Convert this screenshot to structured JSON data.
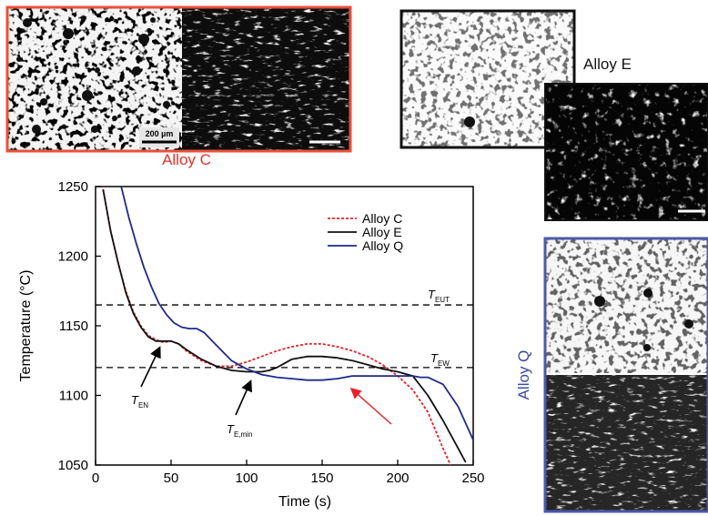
{
  "panels": {
    "alloy_c": {
      "label": "Alloy C",
      "scale_bar": "200 µm",
      "frame_color": "#e8503a",
      "label_color": "#e8322a"
    },
    "alloy_e": {
      "label": "Alloy E",
      "frame_color": "#111111",
      "label_color": "#111111"
    },
    "alloy_q": {
      "label": "Alloy Q",
      "frame_color": "#4a5aa8",
      "label_color": "#3a4aa0"
    }
  },
  "chart_data": {
    "type": "line",
    "xlabel": "Time (s)",
    "ylabel": "Temperature (°C)",
    "xlim": [
      0,
      250
    ],
    "ylim": [
      1050,
      1250
    ],
    "xticks": [
      0,
      50,
      100,
      150,
      200,
      250
    ],
    "yticks": [
      1050,
      1100,
      1150,
      1200,
      1250
    ],
    "grid": false,
    "legend": "top-right",
    "series": [
      {
        "name": "Alloy C",
        "color": "#e8202a",
        "dash": "dashed",
        "x": [
          5,
          10,
          15,
          20,
          25,
          30,
          35,
          40,
          45,
          50,
          55,
          60,
          70,
          80,
          90,
          100,
          110,
          120,
          130,
          140,
          150,
          160,
          170,
          180,
          190,
          200,
          210,
          220,
          225,
          230,
          235
        ],
        "y": [
          1248,
          1218,
          1195,
          1175,
          1160,
          1150,
          1143,
          1140,
          1138,
          1139,
          1137,
          1132,
          1125,
          1121,
          1121,
          1124,
          1128,
          1132,
          1135,
          1137,
          1137,
          1135,
          1132,
          1128,
          1122,
          1114,
          1104,
          1088,
          1075,
          1062,
          1050
        ]
      },
      {
        "name": "Alloy E",
        "color": "#111111",
        "dash": "solid",
        "x": [
          5,
          10,
          15,
          20,
          25,
          30,
          35,
          40,
          45,
          50,
          55,
          60,
          70,
          80,
          90,
          100,
          110,
          115,
          120,
          125,
          130,
          140,
          150,
          160,
          170,
          180,
          190,
          200,
          210,
          220,
          230,
          240,
          245
        ],
        "y": [
          1248,
          1218,
          1195,
          1174,
          1159,
          1149,
          1142,
          1139,
          1139,
          1139,
          1137,
          1133,
          1126,
          1121,
          1118,
          1117,
          1117,
          1118,
          1120,
          1123,
          1126,
          1128,
          1128,
          1127,
          1125,
          1122,
          1119,
          1117,
          1114,
          1100,
          1082,
          1062,
          1052
        ]
      },
      {
        "name": "Alloy Q",
        "color": "#1f2a8a",
        "dash": "solid",
        "x": [
          17,
          22,
          27,
          32,
          37,
          42,
          47,
          52,
          57,
          62,
          67,
          72,
          80,
          90,
          100,
          110,
          120,
          130,
          140,
          150,
          160,
          165,
          170,
          180,
          190,
          200,
          210,
          215,
          220,
          230,
          240,
          250
        ],
        "y": [
          1250,
          1228,
          1209,
          1192,
          1178,
          1166,
          1158,
          1152,
          1149,
          1148,
          1148,
          1145,
          1136,
          1125,
          1119,
          1115,
          1113,
          1112,
          1111,
          1111,
          1112,
          1113,
          1114,
          1114,
          1114,
          1114,
          1114,
          1113,
          1113,
          1108,
          1092,
          1068
        ]
      }
    ],
    "annotations": {
      "t_eut": {
        "base": "T",
        "sub": "EUT",
        "y": 1165
      },
      "t_ew": {
        "base": "T",
        "sub": "EW",
        "y": 1120
      },
      "t_en": {
        "base": "T",
        "sub": "EN",
        "arrow_to": [
          42,
          1139
        ]
      },
      "t_emin": {
        "base": "T",
        "sub": "E,min",
        "arrow_to": [
          107,
          1118
        ]
      }
    }
  }
}
